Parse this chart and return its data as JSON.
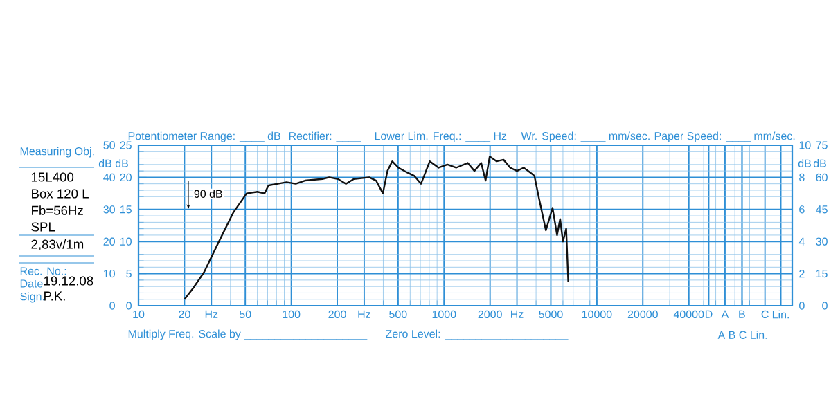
{
  "chart_data": {
    "type": "line",
    "color": "#111111",
    "line_style": "solid",
    "log": "x",
    "grid": true,
    "x": [
      20,
      22.8,
      26.9,
      34,
      41.7,
      51,
      60,
      66.8,
      71,
      81.6,
      93,
      107,
      123,
      160,
      177,
      202,
      228,
      257,
      324,
      359,
      398,
      426,
      458,
      503,
      575,
      637,
      707,
      806,
      922,
      1052,
      1200,
      1428,
      1580,
      1750,
      1870,
      1990,
      2210,
      2450,
      2710,
      3000,
      3320,
      3670,
      3900,
      4180,
      4640,
      5130,
      5490,
      5750,
      6000,
      6300,
      6500
    ],
    "values": [
      2,
      5.5,
      10.5,
      20.5,
      29,
      35,
      35.5,
      35,
      37.5,
      38,
      38.5,
      38,
      39,
      39.5,
      40,
      39.5,
      38,
      39.5,
      40,
      39,
      35,
      42,
      45,
      43,
      41.5,
      40.5,
      38,
      45,
      43,
      44,
      43,
      44.5,
      42,
      44.5,
      39,
      46.5,
      45,
      45.5,
      43,
      42,
      43,
      41.5,
      40.5,
      33.5,
      23.5,
      30.5,
      22,
      27,
      20,
      24,
      7.5
    ],
    "xlim": [
      10,
      190000
    ],
    "xticks": [
      10,
      20,
      {
        "value": 30,
        "label": "Hz"
      },
      50,
      100,
      200,
      {
        "value": 300,
        "label": "Hz"
      },
      500,
      1000,
      2000,
      {
        "value": 3000,
        "label": "Hz"
      },
      5000,
      10000,
      20000,
      40000,
      {
        "value": 54000,
        "label": "D"
      },
      {
        "value": 69000,
        "label": "A"
      },
      {
        "value": 89000,
        "label": "B"
      },
      {
        "value": 126000,
        "label": "C"
      },
      {
        "value": 160000,
        "label": "Lin."
      }
    ],
    "ylim": [
      0,
      50
    ],
    "yticks": [
      0,
      10,
      20,
      30,
      40,
      50
    ],
    "y3lim": [
      0,
      25
    ],
    "y3ticks": [
      0,
      5,
      10,
      15,
      20,
      25
    ],
    "y2lim": [
      0,
      10
    ],
    "y2ticks": [
      0,
      2,
      4,
      6,
      8,
      10
    ],
    "annotations": [
      "Measuring Obj.",
      "15L400",
      "Box 120 L",
      "Fb=56Hz",
      "SPL",
      "2,83v/1m",
      "Rec. No.:",
      "Date",
      "19.12.08",
      "Sign.",
      "P.K.",
      "Potentiometer Range: ____ dB",
      "Rectifier: ____",
      "Lower Lim. Freq.: ____ Hz",
      "Wr. Speed: ____ mm/sec.",
      "Paper Speed: ____ mm/sec.",
      "Multiply Freq. Scale by ____________________",
      "Zero Level: ____________________",
      "A   B   C Lin.",
      "dB",
      "dB",
      "dB",
      "dB",
      "90 dB",
      "0",
      "15",
      "30",
      "45",
      "60",
      "75"
    ]
  }
}
